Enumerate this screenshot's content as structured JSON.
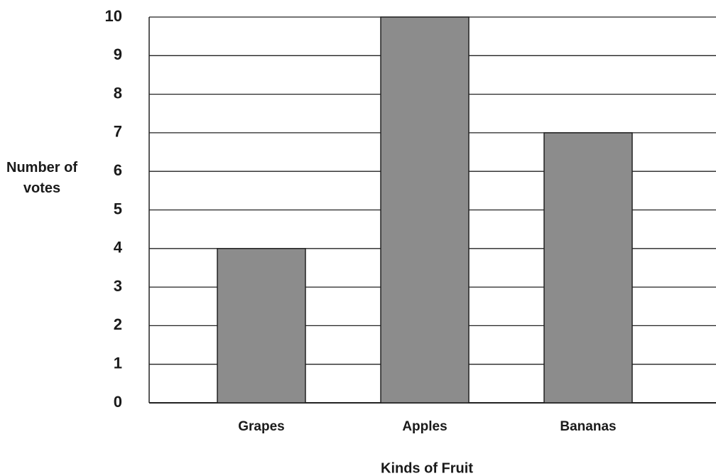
{
  "chart_data": {
    "type": "bar",
    "categories": [
      "Grapes",
      "Apples",
      "Bananas"
    ],
    "values": [
      4,
      10,
      7
    ],
    "color": "#8c8c8c",
    "ylim": [
      0,
      10
    ],
    "yticks": [
      0,
      1,
      2,
      3,
      4,
      5,
      6,
      7,
      8,
      9,
      10
    ],
    "grid": true,
    "y_label": "Number of votes",
    "x_label": "Kinds of Fruit"
  }
}
